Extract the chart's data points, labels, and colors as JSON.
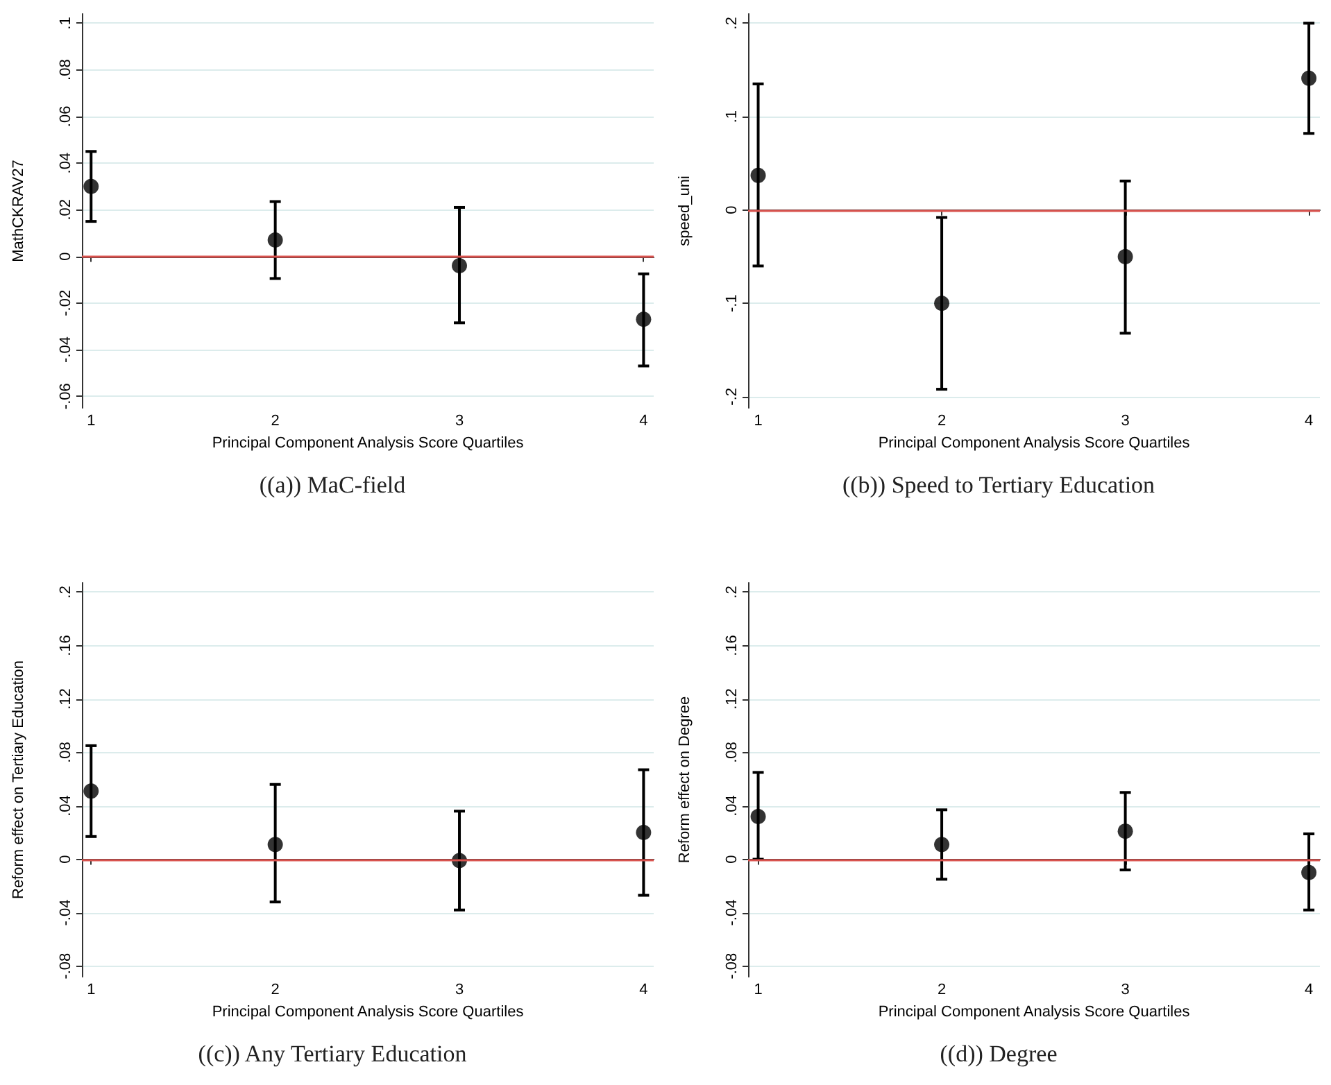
{
  "chart_data": [
    {
      "type": "scatter",
      "title": "((a)) MaC-field",
      "xlabel": "Principal Component Analysis Score Quartiles",
      "ylabel": "MathCKRAV27",
      "x": [
        1,
        2,
        3,
        4
      ],
      "values": [
        0.03,
        0.007,
        -0.004,
        -0.027
      ],
      "errors": [
        [
          0.015,
          0.045
        ],
        [
          -0.0095,
          0.0235
        ],
        [
          -0.0285,
          0.021
        ],
        [
          -0.047,
          -0.0075
        ]
      ],
      "color": "#000000",
      "marker": "circle",
      "xlim": [
        0.95,
        4.055
      ],
      "xticks": [
        1,
        2,
        3,
        4
      ],
      "ylim": [
        -0.065,
        0.104
      ],
      "yticks": [
        {
          "value": -0.06,
          "label": "-.06"
        },
        {
          "value": -0.04,
          "label": "-.04"
        },
        {
          "value": -0.02,
          "label": "-.02"
        },
        {
          "value": 0,
          "label": "0"
        },
        {
          "value": 0.02,
          "label": ".02"
        },
        {
          "value": 0.04,
          "label": ".04"
        },
        {
          "value": 0.06,
          "label": ".06"
        },
        {
          "value": 0.08,
          "label": ".08"
        },
        {
          "value": 0.1,
          "label": ".1"
        }
      ],
      "grid": "y",
      "ref_lines": [
        {
          "axis": "y",
          "value": 0,
          "color": "#d9534f"
        }
      ]
    },
    {
      "type": "scatter",
      "title": "((b)) Speed to Tertiary Education",
      "xlabel": "Principal Component Analysis Score Quartiles",
      "ylabel": "speed_uni",
      "x": [
        1,
        2,
        3,
        4
      ],
      "values": [
        0.037,
        -0.1,
        -0.05,
        0.141
      ],
      "errors": [
        [
          -0.06,
          0.135
        ],
        [
          -0.192,
          -0.008
        ],
        [
          -0.132,
          0.031
        ],
        [
          0.082,
          0.2
        ]
      ],
      "color": "#000000",
      "marker": "circle",
      "xlim": [
        0.945,
        4.06
      ],
      "xticks": [
        1,
        2,
        3,
        4
      ],
      "ylim": [
        -0.212,
        0.21
      ],
      "yticks": [
        {
          "value": -0.2,
          "label": "-.2"
        },
        {
          "value": -0.1,
          "label": "-.1"
        },
        {
          "value": 0,
          "label": "0"
        },
        {
          "value": 0.1,
          "label": ".1"
        },
        {
          "value": 0.2,
          "label": ".2"
        }
      ],
      "grid": "y",
      "ref_lines": [
        {
          "axis": "y",
          "value": 0,
          "color": "#d9534f"
        }
      ]
    },
    {
      "type": "scatter",
      "title": "((c)) Any Tertiary Education",
      "xlabel": "Principal Component Analysis Score Quartiles",
      "ylabel": "Reform effect on Tertiary Education",
      "x": [
        1,
        2,
        3,
        4
      ],
      "values": [
        0.051,
        0.011,
        -0.001,
        0.02
      ],
      "errors": [
        [
          0.017,
          0.085
        ],
        [
          -0.032,
          0.056
        ],
        [
          -0.038,
          0.036
        ],
        [
          -0.027,
          0.067
        ]
      ],
      "color": "#000000",
      "marker": "circle",
      "xlim": [
        0.95,
        4.055
      ],
      "xticks": [
        1,
        2,
        3,
        4
      ],
      "ylim": [
        -0.088,
        0.207
      ],
      "yticks": [
        {
          "value": -0.08,
          "label": "-.08"
        },
        {
          "value": -0.04,
          "label": "-.04"
        },
        {
          "value": 0,
          "label": "0"
        },
        {
          "value": 0.04,
          "label": ".04"
        },
        {
          "value": 0.08,
          "label": ".08"
        },
        {
          "value": 0.12,
          "label": ".12"
        },
        {
          "value": 0.16,
          "label": ".16"
        },
        {
          "value": 0.2,
          "label": ".2"
        }
      ],
      "grid": "y",
      "ref_lines": [
        {
          "axis": "y",
          "value": 0,
          "color": "#d9534f"
        }
      ]
    },
    {
      "type": "scatter",
      "title": "((d)) Degree",
      "xlabel": "Principal Component Analysis Score Quartiles",
      "ylabel": "Reform effect on Degree",
      "x": [
        1,
        2,
        3,
        4
      ],
      "values": [
        0.032,
        0.011,
        0.021,
        -0.01
      ],
      "errors": [
        [
          0,
          0.065
        ],
        [
          -0.015,
          0.037
        ],
        [
          -0.008,
          0.05
        ],
        [
          -0.038,
          0.019
        ]
      ],
      "color": "#000000",
      "marker": "circle",
      "xlim": [
        0.945,
        4.06
      ],
      "xticks": [
        1,
        2,
        3,
        4
      ],
      "ylim": [
        -0.088,
        0.207
      ],
      "yticks": [
        {
          "value": -0.08,
          "label": "-.08"
        },
        {
          "value": -0.04,
          "label": "-.04"
        },
        {
          "value": 0,
          "label": "0"
        },
        {
          "value": 0.04,
          "label": ".04"
        },
        {
          "value": 0.08,
          "label": ".08"
        },
        {
          "value": 0.12,
          "label": ".12"
        },
        {
          "value": 0.16,
          "label": ".16"
        },
        {
          "value": 0.2,
          "label": ".2"
        }
      ],
      "grid": "y",
      "ref_lines": [
        {
          "axis": "y",
          "value": 0,
          "color": "#d9534f"
        }
      ]
    }
  ]
}
